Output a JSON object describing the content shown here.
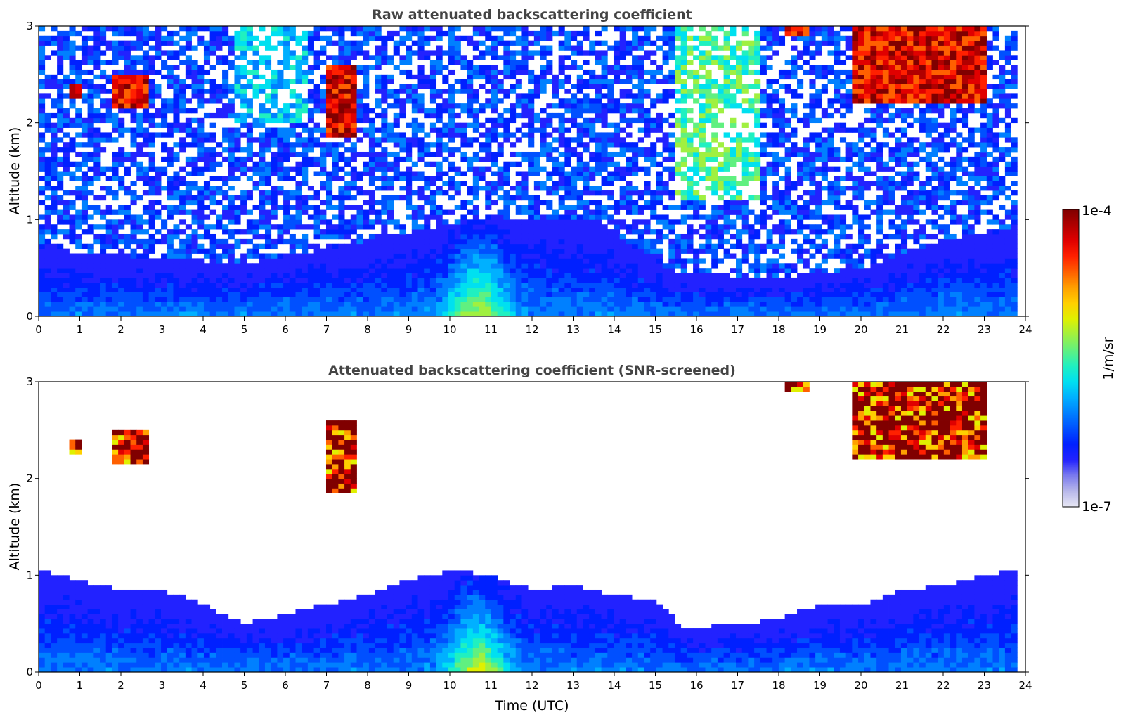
{
  "figure": {
    "colorbar": {
      "label": "1/m/sr",
      "max_label": "1e-4",
      "min_label": "1e-7",
      "scale": "log",
      "colormap": "jet (white-to-blue low end, dark red high end)",
      "colors": [
        "#e8e8f4",
        "#b7b7ea",
        "#7a7aee",
        "#2222ff",
        "#0020ff",
        "#0050ff",
        "#0080ff",
        "#00b0ff",
        "#00e0f0",
        "#20f0c0",
        "#60f080",
        "#a0f040",
        "#e0f000",
        "#ffd000",
        "#ffa000",
        "#ff6000",
        "#ff2000",
        "#e00000",
        "#b00000",
        "#800000"
      ]
    }
  },
  "chart_data": [
    {
      "type": "heatmap",
      "title": "Raw attenuated backscattering coefficient",
      "xlabel": "",
      "ylabel": "Altitude (km)",
      "xlim": [
        0,
        24
      ],
      "ylim": [
        0,
        3
      ],
      "x_ticks": [
        "0",
        "1",
        "2",
        "3",
        "4",
        "5",
        "6",
        "7",
        "8",
        "9",
        "10",
        "11",
        "12",
        "13",
        "14",
        "15",
        "16",
        "17",
        "18",
        "19",
        "20",
        "21",
        "22",
        "23",
        "24"
      ],
      "y_ticks": [
        "0",
        "1",
        "2",
        "3"
      ],
      "data_extent_x": [
        0,
        23.8
      ],
      "features": {
        "noise_top_km": 3,
        "aerosol_layer_top_km": [
          [
            0,
            0.7
          ],
          [
            3,
            0.6
          ],
          [
            5,
            0.55
          ],
          [
            7,
            0.7
          ],
          [
            10.5,
            1.0
          ],
          [
            13.5,
            1.0
          ],
          [
            15.5,
            0.45
          ],
          [
            18,
            0.4
          ],
          [
            20,
            0.5
          ],
          [
            22,
            0.8
          ],
          [
            23.8,
            0.9
          ]
        ],
        "maximum_near": [
          10.7,
          0.3
        ],
        "clouds": [
          {
            "t": [
              0.7,
              1.0
            ],
            "z": [
              2.25,
              2.4
            ]
          },
          {
            "t": [
              1.85,
              2.7
            ],
            "z": [
              2.15,
              2.5
            ]
          },
          {
            "t": [
              7.0,
              7.8
            ],
            "z": [
              1.85,
              2.6
            ]
          },
          {
            "t": [
              18.1,
              18.8
            ],
            "z": [
              2.9,
              3.0
            ]
          },
          {
            "t": [
              19.8,
              23.1
            ],
            "z": [
              2.2,
              3.0
            ]
          }
        ]
      }
    },
    {
      "type": "heatmap",
      "title": "Attenuated backscattering coefficient (SNR-screened)",
      "xlabel": "Time (UTC)",
      "ylabel": "Altitude (km)",
      "xlim": [
        0,
        24
      ],
      "ylim": [
        0,
        3
      ],
      "x_ticks": [
        "0",
        "1",
        "2",
        "3",
        "4",
        "5",
        "6",
        "7",
        "8",
        "9",
        "10",
        "11",
        "12",
        "13",
        "14",
        "15",
        "16",
        "17",
        "18",
        "19",
        "20",
        "21",
        "22",
        "23",
        "24"
      ],
      "y_ticks": [
        "0",
        "1",
        "2",
        "3"
      ],
      "data_extent_x": [
        0,
        23.8
      ],
      "features": {
        "boundary_layer_top_km": [
          [
            0,
            1.05
          ],
          [
            1,
            0.95
          ],
          [
            2,
            0.85
          ],
          [
            3,
            0.85
          ],
          [
            4,
            0.7
          ],
          [
            5,
            0.5
          ],
          [
            6,
            0.6
          ],
          [
            7,
            0.7
          ],
          [
            8,
            0.8
          ],
          [
            9,
            0.95
          ],
          [
            10,
            1.05
          ],
          [
            11,
            1.0
          ],
          [
            12,
            0.85
          ],
          [
            13,
            0.9
          ],
          [
            14,
            0.8
          ],
          [
            15,
            0.75
          ],
          [
            15.7,
            0.45
          ],
          [
            17,
            0.5
          ],
          [
            18,
            0.55
          ],
          [
            19,
            0.7
          ],
          [
            20,
            0.7
          ],
          [
            21,
            0.85
          ],
          [
            22,
            0.9
          ],
          [
            23,
            1.0
          ],
          [
            23.8,
            1.05
          ]
        ],
        "maximum_near": [
          10.7,
          0.3
        ],
        "clouds": [
          {
            "t": [
              0.7,
              1.0
            ],
            "z": [
              2.25,
              2.4
            ]
          },
          {
            "t": [
              1.85,
              2.7
            ],
            "z": [
              2.15,
              2.5
            ]
          },
          {
            "t": [
              7.0,
              7.8
            ],
            "z": [
              1.85,
              2.6
            ]
          },
          {
            "t": [
              18.1,
              18.8
            ],
            "z": [
              2.9,
              3.0
            ]
          },
          {
            "t": [
              19.8,
              23.1
            ],
            "z": [
              2.2,
              3.0
            ]
          }
        ]
      }
    }
  ]
}
